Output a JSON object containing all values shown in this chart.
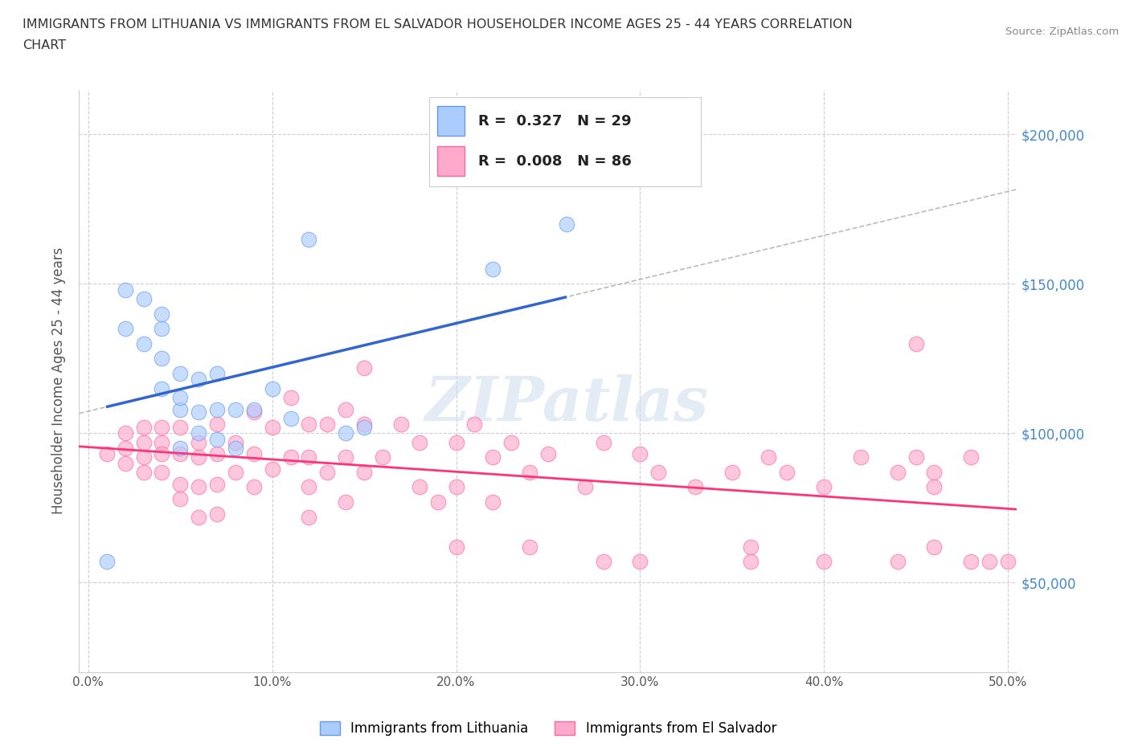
{
  "title_line1": "IMMIGRANTS FROM LITHUANIA VS IMMIGRANTS FROM EL SALVADOR HOUSEHOLDER INCOME AGES 25 - 44 YEARS CORRELATION",
  "title_line2": "CHART",
  "source_text": "Source: ZipAtlas.com",
  "ylabel": "Householder Income Ages 25 - 44 years",
  "xlim": [
    -0.005,
    0.505
  ],
  "ylim": [
    20000,
    215000
  ],
  "xticks": [
    0.0,
    0.1,
    0.2,
    0.3,
    0.4,
    0.5
  ],
  "xticklabels": [
    "0.0%",
    "10.0%",
    "20.0%",
    "30.0%",
    "40.0%",
    "50.0%"
  ],
  "ytick_values": [
    50000,
    100000,
    150000,
    200000
  ],
  "ytick_labels": [
    "$50,000",
    "$100,000",
    "$150,000",
    "$200,000"
  ],
  "lithuania_color": "#aaccff",
  "el_salvador_color": "#ffaacc",
  "lithuania_border_color": "#6699ee",
  "el_salvador_border_color": "#ff6699",
  "lithuania_line_color": "#3366cc",
  "el_salvador_line_color": "#ff3377",
  "yaxis_label_color": "#4488cc",
  "lithuania_R": 0.327,
  "lithuania_N": 29,
  "el_salvador_R": 0.008,
  "el_salvador_N": 86,
  "watermark_text": "ZIPatlas",
  "grid_color": "#ccccdd",
  "legend_label_1": "Immigrants from Lithuania",
  "legend_label_2": "Immigrants from El Salvador",
  "lithuania_x": [
    0.01,
    0.02,
    0.02,
    0.03,
    0.03,
    0.04,
    0.04,
    0.04,
    0.04,
    0.05,
    0.05,
    0.05,
    0.05,
    0.06,
    0.06,
    0.06,
    0.07,
    0.07,
    0.07,
    0.08,
    0.08,
    0.09,
    0.1,
    0.11,
    0.12,
    0.14,
    0.15,
    0.22,
    0.26
  ],
  "lithuania_y": [
    57000,
    135000,
    148000,
    130000,
    145000,
    115000,
    125000,
    135000,
    140000,
    95000,
    108000,
    112000,
    120000,
    100000,
    107000,
    118000,
    98000,
    108000,
    120000,
    95000,
    108000,
    108000,
    115000,
    105000,
    165000,
    100000,
    102000,
    155000,
    170000
  ],
  "el_salvador_x": [
    0.01,
    0.02,
    0.02,
    0.02,
    0.03,
    0.03,
    0.03,
    0.03,
    0.04,
    0.04,
    0.04,
    0.04,
    0.05,
    0.05,
    0.05,
    0.05,
    0.06,
    0.06,
    0.06,
    0.06,
    0.07,
    0.07,
    0.07,
    0.07,
    0.08,
    0.08,
    0.09,
    0.09,
    0.09,
    0.1,
    0.1,
    0.11,
    0.11,
    0.12,
    0.12,
    0.12,
    0.12,
    0.13,
    0.13,
    0.14,
    0.14,
    0.14,
    0.15,
    0.15,
    0.15,
    0.16,
    0.17,
    0.18,
    0.18,
    0.19,
    0.2,
    0.2,
    0.21,
    0.22,
    0.22,
    0.23,
    0.24,
    0.25,
    0.27,
    0.28,
    0.3,
    0.31,
    0.33,
    0.35,
    0.37,
    0.38,
    0.4,
    0.42,
    0.44,
    0.45,
    0.46,
    0.46,
    0.48,
    0.2,
    0.24,
    0.28,
    0.3,
    0.36,
    0.36,
    0.4,
    0.44,
    0.46,
    0.48,
    0.49,
    0.5,
    0.45
  ],
  "el_salvador_y": [
    93000,
    95000,
    100000,
    90000,
    97000,
    102000,
    92000,
    87000,
    97000,
    102000,
    93000,
    87000,
    102000,
    93000,
    83000,
    78000,
    97000,
    92000,
    82000,
    72000,
    103000,
    93000,
    83000,
    73000,
    97000,
    87000,
    107000,
    93000,
    82000,
    102000,
    88000,
    112000,
    92000,
    103000,
    92000,
    82000,
    72000,
    103000,
    87000,
    108000,
    92000,
    77000,
    122000,
    103000,
    87000,
    92000,
    103000,
    97000,
    82000,
    77000,
    97000,
    82000,
    103000,
    92000,
    77000,
    97000,
    87000,
    93000,
    82000,
    97000,
    93000,
    87000,
    82000,
    87000,
    92000,
    87000,
    82000,
    92000,
    87000,
    92000,
    82000,
    87000,
    92000,
    62000,
    62000,
    57000,
    57000,
    57000,
    62000,
    57000,
    57000,
    62000,
    57000,
    57000,
    57000,
    130000
  ]
}
